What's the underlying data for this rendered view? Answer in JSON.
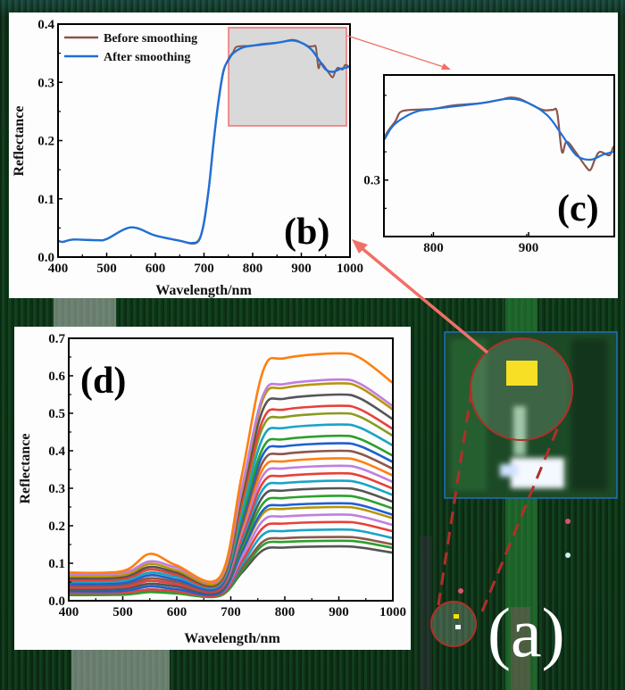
{
  "figure_labels": {
    "a": "(a)",
    "b": "(b)",
    "c": "(c)",
    "d": "(d)"
  },
  "colors": {
    "before": "#8c564b",
    "after": "#1f6fd6",
    "highlight_box": "#f07070",
    "arrow": "#f07068",
    "circle": "#b03028",
    "inset_border": "#1f6fbf"
  },
  "chart_data": [
    {
      "id": "b",
      "type": "line",
      "xlabel": "Wavelength/nm",
      "ylabel": "Reflectance",
      "xlim": [
        400,
        1000
      ],
      "ylim": [
        0,
        0.4
      ],
      "xticks": [
        "400",
        "500",
        "600",
        "700",
        "800",
        "900",
        "1000"
      ],
      "yticks": [
        "0.0",
        "0.1",
        "0.2",
        "0.3",
        "0.4"
      ],
      "legend_position": "top-left",
      "highlight_region": {
        "x": [
          750,
          995
        ],
        "y": [
          0.225,
          0.39
        ]
      },
      "series": [
        {
          "name": "Before smoothing",
          "color": "#8c564b",
          "x": [
            400,
            410,
            430,
            480,
            500,
            550,
            600,
            650,
            675,
            690,
            700,
            710,
            720,
            730,
            740,
            750,
            760,
            765,
            775,
            800,
            820,
            850,
            870,
            880,
            890,
            900,
            915,
            925,
            930,
            935,
            940,
            950,
            960,
            965,
            970,
            975,
            985,
            990,
            1000
          ],
          "y": [
            0.028,
            0.026,
            0.03,
            0.029,
            0.031,
            0.051,
            0.037,
            0.028,
            0.023,
            0.029,
            0.058,
            0.118,
            0.198,
            0.268,
            0.318,
            0.34,
            0.352,
            0.36,
            0.362,
            0.363,
            0.366,
            0.368,
            0.371,
            0.373,
            0.372,
            0.368,
            0.362,
            0.362,
            0.36,
            0.325,
            0.334,
            0.324,
            0.312,
            0.309,
            0.319,
            0.325,
            0.322,
            0.33,
            0.326
          ]
        },
        {
          "name": "After smoothing",
          "color": "#1f6fd6",
          "x": [
            400,
            410,
            430,
            480,
            500,
            550,
            600,
            650,
            675,
            690,
            700,
            710,
            720,
            730,
            740,
            750,
            760,
            780,
            800,
            850,
            880,
            900,
            920,
            935,
            950,
            965,
            980,
            1000
          ],
          "y": [
            0.028,
            0.026,
            0.03,
            0.029,
            0.031,
            0.051,
            0.037,
            0.028,
            0.024,
            0.03,
            0.06,
            0.12,
            0.2,
            0.27,
            0.32,
            0.338,
            0.35,
            0.36,
            0.363,
            0.368,
            0.372,
            0.368,
            0.357,
            0.34,
            0.322,
            0.318,
            0.323,
            0.327
          ]
        }
      ]
    },
    {
      "id": "c",
      "type": "line",
      "xlim": [
        748,
        990
      ],
      "ylim": [
        0.25,
        0.393
      ],
      "xticks": [
        "800",
        "900"
      ],
      "yticks": [
        "0.3"
      ],
      "note": "zoomed view of highlighted region in (b)"
    },
    {
      "id": "d",
      "type": "line",
      "xlabel": "Wavelength/nm",
      "ylabel": "Reflectance",
      "xlim": [
        400,
        1000
      ],
      "ylim": [
        0,
        0.7
      ],
      "xticks": [
        "400",
        "500",
        "600",
        "700",
        "800",
        "900",
        "1000"
      ],
      "yticks": [
        "0.0",
        "0.1",
        "0.2",
        "0.3",
        "0.4",
        "0.5",
        "0.6",
        "0.7"
      ],
      "x": [
        400,
        500,
        550,
        600,
        680,
        720,
        760,
        800,
        900,
        940,
        1000
      ],
      "series": [
        {
          "color": "#ff7f0e",
          "values": [
            0.075,
            0.079,
            0.125,
            0.094,
            0.064,
            0.332,
            0.614,
            0.647,
            0.66,
            0.647,
            0.581
          ]
        },
        {
          "color": "#c07ee0",
          "values": [
            0.07,
            0.074,
            0.105,
            0.088,
            0.06,
            0.299,
            0.549,
            0.578,
            0.59,
            0.578,
            0.519
          ]
        },
        {
          "color": "#b8960c",
          "values": [
            0.065,
            0.068,
            0.098,
            0.081,
            0.055,
            0.291,
            0.539,
            0.568,
            0.58,
            0.568,
            0.51
          ]
        },
        {
          "color": "#555555",
          "values": [
            0.06,
            0.063,
            0.09,
            0.075,
            0.051,
            0.276,
            0.512,
            0.539,
            0.55,
            0.539,
            0.484
          ]
        },
        {
          "color": "#e8403a",
          "values": [
            0.055,
            0.058,
            0.083,
            0.069,
            0.047,
            0.26,
            0.484,
            0.51,
            0.52,
            0.51,
            0.458
          ]
        },
        {
          "color": "#8a9a20",
          "values": [
            0.06,
            0.063,
            0.09,
            0.075,
            0.051,
            0.253,
            0.465,
            0.49,
            0.5,
            0.49,
            0.44
          ]
        },
        {
          "color": "#1aa3c9",
          "values": [
            0.05,
            0.053,
            0.075,
            0.063,
            0.043,
            0.235,
            0.437,
            0.461,
            0.47,
            0.461,
            0.414
          ]
        },
        {
          "color": "#2ca02c",
          "values": [
            0.05,
            0.053,
            0.075,
            0.063,
            0.043,
            0.221,
            0.409,
            0.431,
            0.44,
            0.431,
            0.387
          ]
        },
        {
          "color": "#1f5fd0",
          "values": [
            0.045,
            0.047,
            0.068,
            0.056,
            0.038,
            0.21,
            0.391,
            0.412,
            0.42,
            0.412,
            0.37
          ]
        },
        {
          "color": "#8c564b",
          "values": [
            0.04,
            0.042,
            0.06,
            0.05,
            0.034,
            0.199,
            0.372,
            0.392,
            0.4,
            0.392,
            0.352
          ]
        },
        {
          "color": "#ff7f0e",
          "values": [
            0.045,
            0.047,
            0.068,
            0.056,
            0.038,
            0.192,
            0.353,
            0.372,
            0.38,
            0.372,
            0.334
          ]
        },
        {
          "color": "#c07ee0",
          "values": [
            0.04,
            0.042,
            0.06,
            0.05,
            0.034,
            0.181,
            0.335,
            0.353,
            0.36,
            0.353,
            0.317
          ]
        },
        {
          "color": "#e8403a",
          "values": [
            0.035,
            0.037,
            0.053,
            0.044,
            0.03,
            0.17,
            0.316,
            0.333,
            0.34,
            0.333,
            0.299
          ]
        },
        {
          "color": "#1aa3c9",
          "values": [
            0.035,
            0.037,
            0.053,
            0.044,
            0.03,
            0.161,
            0.298,
            0.314,
            0.32,
            0.314,
            0.282
          ]
        },
        {
          "color": "#555555",
          "values": [
            0.03,
            0.032,
            0.045,
            0.038,
            0.026,
            0.149,
            0.279,
            0.294,
            0.3,
            0.294,
            0.264
          ]
        },
        {
          "color": "#2ca02c",
          "values": [
            0.03,
            0.032,
            0.045,
            0.038,
            0.026,
            0.14,
            0.26,
            0.274,
            0.28,
            0.274,
            0.246
          ]
        },
        {
          "color": "#1f5fd0",
          "values": [
            0.025,
            0.026,
            0.038,
            0.031,
            0.021,
            0.129,
            0.242,
            0.255,
            0.26,
            0.255,
            0.229
          ]
        },
        {
          "color": "#b8960c",
          "values": [
            0.03,
            0.032,
            0.045,
            0.038,
            0.026,
            0.127,
            0.233,
            0.245,
            0.25,
            0.245,
            0.22
          ]
        },
        {
          "color": "#c07ee0",
          "values": [
            0.025,
            0.026,
            0.038,
            0.031,
            0.021,
            0.115,
            0.214,
            0.225,
            0.23,
            0.225,
            0.202
          ]
        },
        {
          "color": "#e8403a",
          "values": [
            0.02,
            0.021,
            0.03,
            0.025,
            0.017,
            0.104,
            0.195,
            0.206,
            0.21,
            0.206,
            0.185
          ]
        },
        {
          "color": "#1aa3c9",
          "values": [
            0.02,
            0.021,
            0.03,
            0.025,
            0.017,
            0.095,
            0.177,
            0.186,
            0.19,
            0.186,
            0.167
          ]
        },
        {
          "color": "#8c564b",
          "values": [
            0.02,
            0.021,
            0.03,
            0.025,
            0.017,
            0.086,
            0.158,
            0.167,
            0.17,
            0.167,
            0.15
          ]
        },
        {
          "color": "#2ca02c",
          "values": [
            0.015,
            0.016,
            0.023,
            0.019,
            0.013,
            0.079,
            0.149,
            0.157,
            0.16,
            0.157,
            0.141
          ]
        },
        {
          "color": "#555555",
          "values": [
            0.018,
            0.019,
            0.027,
            0.023,
            0.015,
            0.074,
            0.135,
            0.142,
            0.145,
            0.142,
            0.128
          ]
        }
      ]
    }
  ]
}
